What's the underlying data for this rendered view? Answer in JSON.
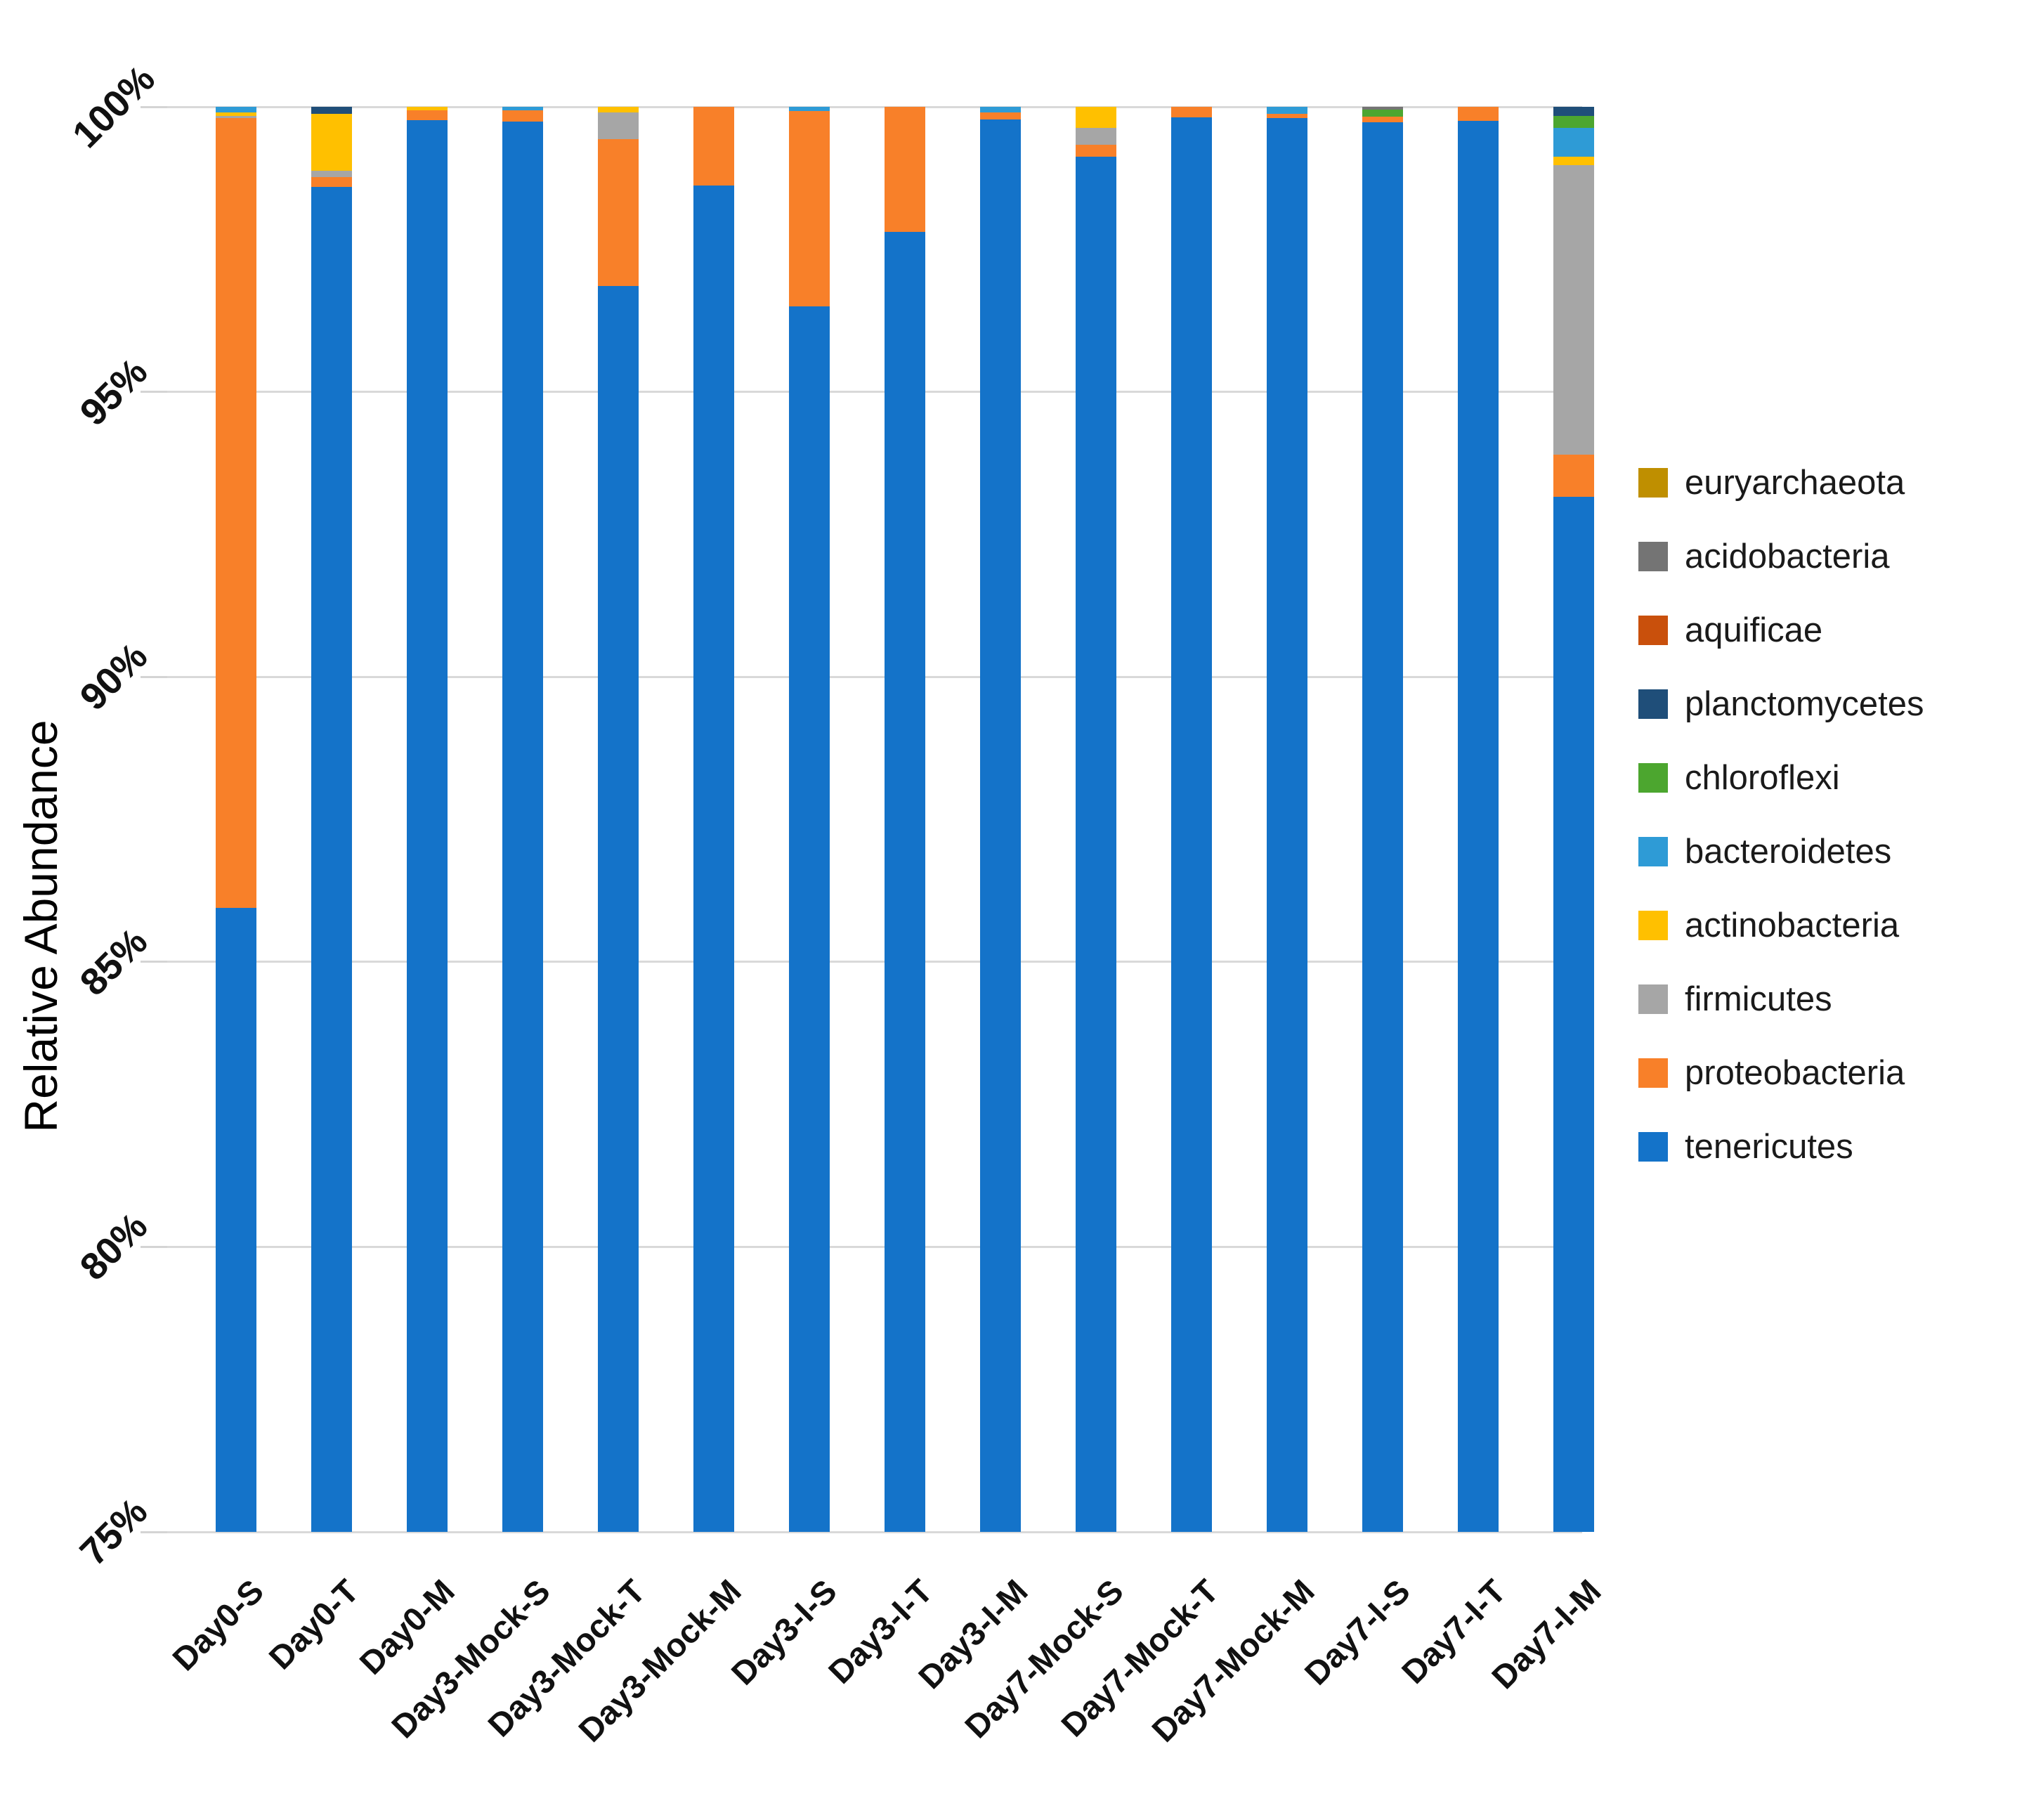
{
  "y_axis": {
    "title": "Relative Abundance",
    "tick_labels": [
      "100%",
      "95%",
      "90%",
      "85%",
      "80%",
      "75%"
    ],
    "tick_values": [
      100,
      95,
      90,
      85,
      80,
      75
    ]
  },
  "legend": {
    "position": "right",
    "items": [
      {
        "label": "euryarchaeota",
        "color": "#BF8F00"
      },
      {
        "label": "acidobacteria",
        "color": "#747474"
      },
      {
        "label": "aquificae",
        "color": "#C9500C"
      },
      {
        "label": "planctomycetes",
        "color": "#1F4E79"
      },
      {
        "label": "chloroflexi",
        "color": "#4CA62F"
      },
      {
        "label": "bacteroidetes",
        "color": "#2E9BD6"
      },
      {
        "label": "actinobacteria",
        "color": "#FFC000"
      },
      {
        "label": "firmicutes",
        "color": "#A6A6A6"
      },
      {
        "label": "proteobacteria",
        "color": "#F88029"
      },
      {
        "label": "tenericutes",
        "color": "#1473C9"
      }
    ]
  },
  "chart_data": {
    "type": "bar",
    "stacked": true,
    "title": "",
    "xlabel": "",
    "ylabel": "Relative Abundance",
    "ylim": [
      75,
      100
    ],
    "grid": true,
    "legend_position": "right",
    "categories": [
      "Day0-S",
      "Day0-T",
      "Day0-M",
      "Day3-Mock-S",
      "Day3-Mock-T",
      "Day3-Mock-M",
      "Day3-I-S",
      "Day3-I-T",
      "Day3-I-M",
      "Day7-Mock-S",
      "Day7-Mock-T",
      "Day7-Mock-M",
      "Day7-I-S",
      "Day7-I-T",
      "Day7-I-M"
    ],
    "stack_order_note": "series listed bottom-to-top of each stacked bar; values are percent",
    "series": [
      {
        "name": "tenericutes",
        "color": "#1473C9",
        "values": [
          85.95,
          98.6,
          99.76,
          99.74,
          96.86,
          98.62,
          96.5,
          97.8,
          99.78,
          99.13,
          99.82,
          99.8,
          99.73,
          99.75,
          93.16
        ]
      },
      {
        "name": "proteobacteria",
        "color": "#F88029",
        "values": [
          13.85,
          0.17,
          0.18,
          0.2,
          2.57,
          1.38,
          3.42,
          2.2,
          0.12,
          0.21,
          0.18,
          0.08,
          0.1,
          0.25,
          0.74
        ]
      },
      {
        "name": "firmicutes",
        "color": "#A6A6A6",
        "values": [
          0.04,
          0.11,
          0,
          0,
          0.47,
          0,
          0,
          0,
          0,
          0.29,
          0,
          0,
          0,
          0,
          5.08
        ]
      },
      {
        "name": "actinobacteria",
        "color": "#FFC000",
        "values": [
          0.06,
          1.0,
          0.06,
          0,
          0.1,
          0,
          0,
          0,
          0,
          0.37,
          0,
          0,
          0,
          0,
          0.14
        ]
      },
      {
        "name": "bacteroidetes",
        "color": "#2E9BD6",
        "values": [
          0.1,
          0,
          0,
          0.06,
          0,
          0,
          0.08,
          0,
          0.1,
          0,
          0,
          0.12,
          0,
          0,
          0.51
        ]
      },
      {
        "name": "chloroflexi",
        "color": "#4CA62F",
        "values": [
          0,
          0,
          0,
          0,
          0,
          0,
          0,
          0,
          0,
          0,
          0,
          0,
          0.12,
          0,
          0.21
        ]
      },
      {
        "name": "planctomycetes",
        "color": "#1F4E79",
        "values": [
          0,
          0.12,
          0,
          0,
          0,
          0,
          0,
          0,
          0,
          0,
          0,
          0,
          0,
          0,
          0.16
        ]
      },
      {
        "name": "aquificae",
        "color": "#C9500C",
        "values": [
          0,
          0,
          0,
          0,
          0,
          0,
          0,
          0,
          0,
          0,
          0,
          0,
          0,
          0,
          0
        ]
      },
      {
        "name": "acidobacteria",
        "color": "#747474",
        "values": [
          0,
          0,
          0,
          0,
          0,
          0,
          0,
          0,
          0,
          0,
          0,
          0,
          0.05,
          0,
          0
        ]
      },
      {
        "name": "euryarchaeota",
        "color": "#BF8F00",
        "values": [
          0,
          0,
          0,
          0,
          0,
          0,
          0,
          0,
          0,
          0,
          0,
          0,
          0,
          0,
          0
        ]
      }
    ]
  }
}
